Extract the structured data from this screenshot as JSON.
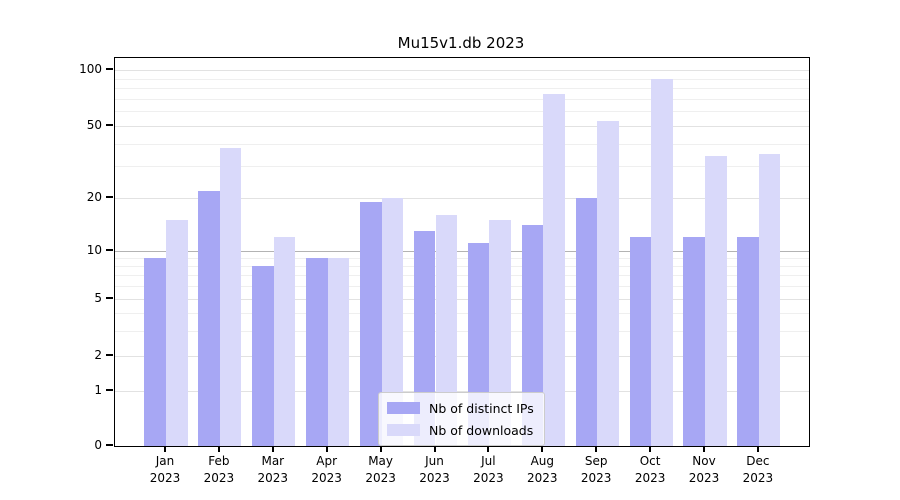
{
  "chart_data": {
    "type": "bar",
    "title": "Mu15v1.db 2023",
    "xlabel": "",
    "ylabel": "",
    "categories": [
      "Jan",
      "Feb",
      "Mar",
      "Apr",
      "May",
      "Jun",
      "Jul",
      "Aug",
      "Sep",
      "Oct",
      "Nov",
      "Dec"
    ],
    "year_label": "2023",
    "series": [
      {
        "name": "Nb of distinct IPs",
        "color": "#a7a7f4",
        "values": [
          9,
          22,
          8,
          9,
          19,
          13,
          11,
          14,
          20,
          12,
          12,
          12
        ]
      },
      {
        "name": "Nb of downloads",
        "color": "#d9d9fa",
        "values": [
          15,
          38,
          12,
          9,
          20,
          16,
          15,
          74,
          53,
          90,
          34,
          35
        ]
      }
    ],
    "yaxis": {
      "scale": "log-like (compressed below 10, linear 0-1)",
      "range": [
        0,
        100
      ],
      "ticks": [
        0,
        1,
        2,
        5,
        10,
        20,
        50,
        100
      ],
      "minor_gridlines": [
        3,
        4,
        6,
        7,
        8,
        9,
        30,
        40,
        60,
        70,
        80,
        90
      ],
      "emphasized_gridline": 10
    },
    "legend": {
      "position": "lower-center",
      "entries": [
        "Nb of distinct IPs",
        "Nb of downloads"
      ]
    },
    "grid": true,
    "background_color": "#ffffff"
  }
}
